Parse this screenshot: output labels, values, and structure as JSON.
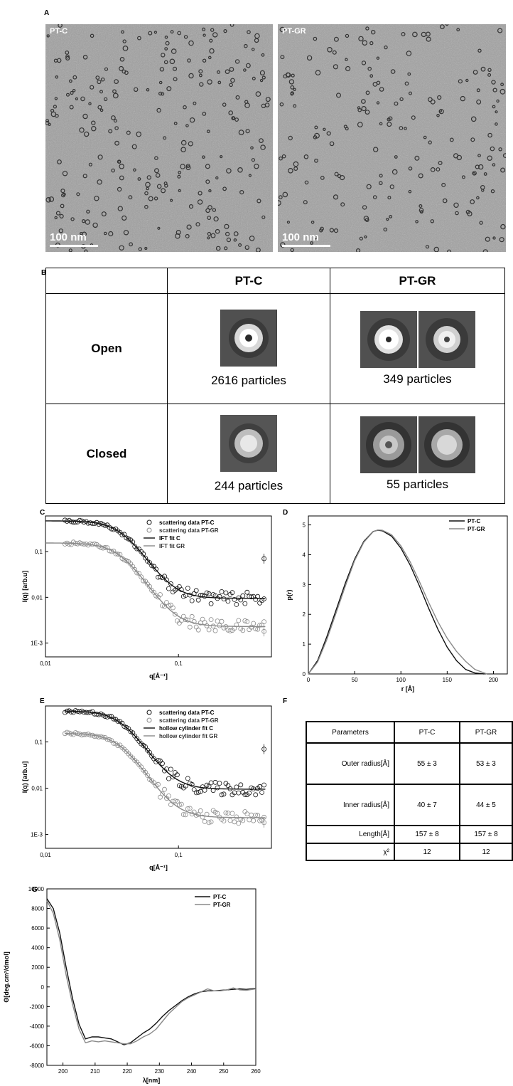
{
  "panels": {
    "A": "A",
    "B": "B",
    "C": "C",
    "D": "D",
    "E": "E",
    "F": "F",
    "G": "G"
  },
  "micrographs": [
    {
      "label": "PT-C",
      "scale": "100 nm"
    },
    {
      "label": "PT-GR",
      "scale": "100 nm"
    }
  ],
  "class_table": {
    "columns": [
      "",
      "PT-C",
      "PT-GR"
    ],
    "rows": [
      {
        "label": "Open",
        "ptc_count": "2616 particles",
        "ptgr_count": "349 particles"
      },
      {
        "label": "Closed",
        "ptc_count": "244 particles",
        "ptgr_count": "55 particles"
      }
    ]
  },
  "params_table": {
    "headers": [
      "Parameters",
      "PT-C",
      "PT-GR"
    ],
    "rows": [
      [
        "Outer radius[Å]",
        "55 ± 3",
        "53 ± 3"
      ],
      [
        "Inner radius[Å]",
        "40 ± 7",
        "44 ± 5"
      ],
      [
        "Length[Å]",
        "157 ± 8",
        "157 ± 8"
      ],
      [
        "χ²",
        "12",
        "12"
      ]
    ]
  },
  "colors": {
    "ptc": "#111111",
    "ptgr": "#8a8a8a"
  },
  "chart_data": [
    {
      "id": "C",
      "type": "scatter",
      "xscale": "log",
      "yscale": "log",
      "xlabel": "q[Å⁻¹]",
      "ylabel": "I(q) [arb.u]",
      "xlim": [
        0.01,
        0.5
      ],
      "ylim": [
        0.0005,
        0.6
      ],
      "xticks": [
        "0,01",
        "0,1"
      ],
      "yticks": [
        "1E-3",
        "0,01",
        "0,1"
      ],
      "legend_position": "top-right",
      "legend": [
        "scattering data PT-C",
        "scattering data PT-GR",
        "IFT fit C",
        "IFT fit GR"
      ],
      "series": [
        {
          "name": "scattering data PT-C",
          "kind": "points",
          "model": {
            "a": 0.46,
            "q0": 0.038,
            "n": 4.6,
            "b": 0.0095
          }
        },
        {
          "name": "scattering data PT-GR",
          "kind": "points",
          "model": {
            "a": 0.152,
            "q0": 0.037,
            "n": 4.6,
            "b": 0.0023
          }
        },
        {
          "name": "IFT fit C",
          "kind": "line",
          "x_range": [
            0.01,
            0.45
          ]
        },
        {
          "name": "IFT fit GR",
          "kind": "line",
          "x_range": [
            0.01,
            0.45
          ]
        }
      ]
    },
    {
      "id": "D",
      "type": "line",
      "xlabel": "r [Å]",
      "ylabel": "p(r)",
      "xlim": [
        0,
        215
      ],
      "ylim": [
        0,
        5.3
      ],
      "xticks": [
        0,
        50,
        100,
        150,
        200
      ],
      "yticks": [
        0,
        1,
        2,
        3,
        4,
        5
      ],
      "legend_position": "top-right",
      "series": [
        {
          "name": "PT-C",
          "x": [
            0,
            10,
            20,
            30,
            40,
            50,
            60,
            70,
            75,
            80,
            90,
            100,
            110,
            120,
            130,
            140,
            150,
            160,
            170,
            180,
            190
          ],
          "y": [
            0,
            0.45,
            1.25,
            2.15,
            3.05,
            3.85,
            4.45,
            4.78,
            4.82,
            4.8,
            4.62,
            4.22,
            3.65,
            2.95,
            2.2,
            1.5,
            0.9,
            0.45,
            0.15,
            0.03,
            0
          ]
        },
        {
          "name": "PT-GR",
          "x": [
            0,
            10,
            20,
            30,
            40,
            50,
            60,
            70,
            75,
            80,
            90,
            100,
            110,
            120,
            130,
            140,
            150,
            160,
            170,
            180,
            193
          ],
          "y": [
            0,
            0.4,
            1.15,
            2.05,
            2.95,
            3.8,
            4.42,
            4.77,
            4.83,
            4.82,
            4.67,
            4.3,
            3.76,
            3.1,
            2.4,
            1.75,
            1.2,
            0.76,
            0.42,
            0.15,
            0
          ]
        }
      ]
    },
    {
      "id": "E",
      "type": "scatter",
      "xscale": "log",
      "yscale": "log",
      "xlabel": "q[Å⁻¹]",
      "ylabel": "I(q) [arb.u]",
      "xlim": [
        0.01,
        0.5
      ],
      "ylim": [
        0.0005,
        0.6
      ],
      "xticks": [
        "0,01",
        "0,1"
      ],
      "yticks": [
        "1E-3",
        "0,01",
        "0,1"
      ],
      "legend_position": "top-right",
      "legend": [
        "scattering data PT-C",
        "scattering data PT-GR",
        "hollow cylinder fit C",
        "hollow cylinder fit GR"
      ],
      "series": [
        {
          "name": "scattering data PT-C",
          "kind": "points",
          "model": {
            "a": 0.46,
            "q0": 0.038,
            "n": 4.6,
            "b": 0.0095
          }
        },
        {
          "name": "scattering data PT-GR",
          "kind": "points",
          "model": {
            "a": 0.152,
            "q0": 0.037,
            "n": 4.6,
            "b": 0.0023
          }
        },
        {
          "name": "hollow cylinder fit C",
          "kind": "line",
          "x_range": [
            0.014,
            0.45
          ]
        },
        {
          "name": "hollow cylinder fit GR",
          "kind": "line",
          "x_range": [
            0.014,
            0.45
          ]
        }
      ]
    },
    {
      "id": "G",
      "type": "line",
      "xlabel": "λ[nm]",
      "ylabel": "Θ[deg.cm²/dmol]",
      "xlim": [
        195,
        260
      ],
      "ylim": [
        -8000,
        10000
      ],
      "xticks": [
        200,
        210,
        220,
        230,
        240,
        250,
        260
      ],
      "yticks": [
        -8000,
        -6000,
        -4000,
        -2000,
        0,
        2000,
        4000,
        6000,
        8000,
        10000
      ],
      "legend_position": "top-right",
      "series": [
        {
          "name": "PT-C",
          "x": [
            195,
            197,
            199,
            201,
            203,
            205,
            207,
            209,
            211,
            213,
            215,
            217,
            219,
            221,
            223,
            225,
            227,
            229,
            231,
            233,
            235,
            237,
            239,
            241,
            243,
            245,
            247,
            249,
            251,
            253,
            255,
            257,
            260
          ],
          "y": [
            9000,
            8000,
            5500,
            2000,
            -1200,
            -3800,
            -5300,
            -5100,
            -5100,
            -5200,
            -5300,
            -5600,
            -5900,
            -5700,
            -5200,
            -4700,
            -4300,
            -3700,
            -3000,
            -2400,
            -1900,
            -1400,
            -1000,
            -700,
            -500,
            -400,
            -400,
            -350,
            -300,
            -250,
            -200,
            -250,
            -150
          ]
        },
        {
          "name": "PT-GR",
          "x": [
            195,
            197,
            199,
            201,
            203,
            205,
            207,
            209,
            211,
            213,
            215,
            217,
            219,
            221,
            223,
            225,
            227,
            229,
            231,
            233,
            235,
            237,
            239,
            241,
            243,
            245,
            247,
            249,
            251,
            253,
            255,
            257,
            260
          ],
          "y": [
            8800,
            7500,
            4800,
            1200,
            -1800,
            -4300,
            -5700,
            -5500,
            -5600,
            -5500,
            -5600,
            -5700,
            -5800,
            -5800,
            -5500,
            -5100,
            -4800,
            -4300,
            -3500,
            -2700,
            -2100,
            -1500,
            -1100,
            -800,
            -500,
            -200,
            -400,
            -400,
            -300,
            -100,
            -300,
            -350,
            -200
          ]
        }
      ]
    }
  ]
}
